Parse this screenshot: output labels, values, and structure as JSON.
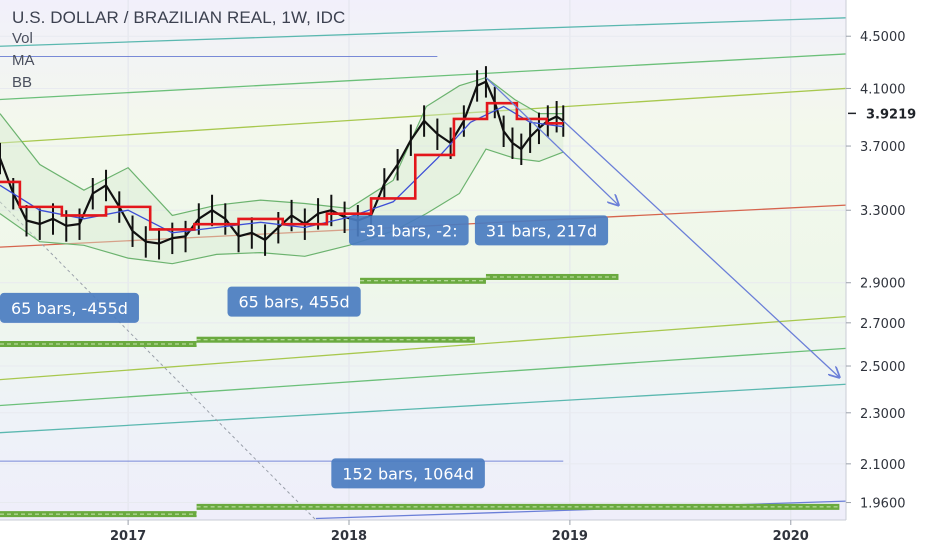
{
  "chart_data": {
    "type": "line",
    "title": "U.S. DOLLAR / BRAZILIAN REAL, 1W, IDC",
    "indicators": [
      "Vol",
      "MA",
      "BB"
    ],
    "x_ticks": [
      "2017",
      "2018",
      "2019",
      "2020"
    ],
    "y_ticks": [
      4.5,
      4.1,
      3.7,
      3.3,
      2.9,
      2.7,
      2.5,
      2.3,
      2.1,
      1.96
    ],
    "y_tick_labels": [
      "4.5000",
      "4.1000",
      "3.7000",
      "3.3000",
      "2.9000",
      "2.7000",
      "2.5000",
      "2.3000",
      "2.1000",
      "1.9600"
    ],
    "last_price": 3.9219,
    "last_price_label": "3.9219",
    "x_range": [
      2016.42,
      2020.25
    ],
    "y_scale": "log",
    "y_range": [
      1.9,
      4.8
    ],
    "series": [
      {
        "role": "price",
        "x": [
          2016.42,
          2016.48,
          2016.54,
          2016.6,
          2016.66,
          2016.72,
          2016.78,
          2016.84,
          2016.9,
          2016.96,
          2017.02,
          2017.08,
          2017.14,
          2017.2,
          2017.26,
          2017.32,
          2017.38,
          2017.44,
          2017.5,
          2017.56,
          2017.62,
          2017.68,
          2017.74,
          2017.8,
          2017.86,
          2017.92,
          2017.98,
          2018.04,
          2018.1,
          2018.16,
          2018.22,
          2018.28,
          2018.34,
          2018.4,
          2018.46,
          2018.52,
          2018.58,
          2018.62,
          2018.66,
          2018.7,
          2018.74,
          2018.78,
          2018.82,
          2018.86,
          2018.9,
          2018.94,
          2018.97
        ],
        "values": [
          3.62,
          3.4,
          3.24,
          3.22,
          3.25,
          3.21,
          3.22,
          3.4,
          3.45,
          3.32,
          3.18,
          3.12,
          3.11,
          3.14,
          3.15,
          3.25,
          3.3,
          3.25,
          3.15,
          3.17,
          3.13,
          3.2,
          3.27,
          3.22,
          3.28,
          3.3,
          3.26,
          3.24,
          3.27,
          3.46,
          3.58,
          3.74,
          3.87,
          3.78,
          3.72,
          3.87,
          4.12,
          4.15,
          4.0,
          3.8,
          3.72,
          3.68,
          3.76,
          3.82,
          3.87,
          3.9,
          3.87
        ]
      },
      {
        "role": "ma",
        "x": [
          2016.42,
          2016.6,
          2016.8,
          2017.0,
          2017.2,
          2017.4,
          2017.6,
          2017.8,
          2018.0,
          2018.2,
          2018.4,
          2018.55,
          2018.7,
          2018.82,
          2018.97
        ],
        "values": [
          3.45,
          3.3,
          3.25,
          3.3,
          3.17,
          3.2,
          3.23,
          3.2,
          3.26,
          3.35,
          3.62,
          3.86,
          3.97,
          3.86,
          3.83
        ]
      },
      {
        "role": "bb_upper",
        "x": [
          2016.42,
          2016.6,
          2016.8,
          2017.0,
          2017.2,
          2017.4,
          2017.6,
          2017.8,
          2018.0,
          2018.2,
          2018.35,
          2018.5,
          2018.62,
          2018.75,
          2018.86,
          2018.97
        ],
        "values": [
          3.92,
          3.58,
          3.42,
          3.56,
          3.27,
          3.33,
          3.36,
          3.34,
          3.31,
          3.48,
          3.97,
          4.12,
          4.18,
          4.02,
          3.92,
          3.92
        ]
      },
      {
        "role": "bb_lower",
        "x": [
          2016.42,
          2016.6,
          2016.8,
          2017.0,
          2017.2,
          2017.4,
          2017.6,
          2017.8,
          2018.0,
          2018.2,
          2018.35,
          2018.5,
          2018.62,
          2018.75,
          2018.86,
          2018.97
        ],
        "values": [
          3.28,
          3.12,
          3.1,
          3.03,
          3.0,
          3.05,
          3.06,
          3.04,
          3.1,
          3.18,
          3.28,
          3.4,
          3.68,
          3.62,
          3.6,
          3.66
        ]
      }
    ],
    "channel_lines": [
      {
        "x": [
          2016.42,
          2020.25
        ],
        "values": [
          4.42,
          4.65
        ],
        "color": "#5bb8b0"
      },
      {
        "x": [
          2016.42,
          2020.25
        ],
        "values": [
          4.02,
          4.36
        ],
        "color": "#6cc07a"
      },
      {
        "x": [
          2016.42,
          2020.25
        ],
        "values": [
          3.72,
          4.1
        ],
        "color": "#a8c84e"
      },
      {
        "x": [
          2016.42,
          2020.25
        ],
        "values": [
          3.09,
          3.33
        ],
        "color": "#d6654e"
      },
      {
        "x": [
          2016.42,
          2020.25
        ],
        "values": [
          2.44,
          2.73
        ],
        "color": "#a8c84e"
      },
      {
        "x": [
          2016.42,
          2020.25
        ],
        "values": [
          2.33,
          2.58
        ],
        "color": "#6cc07a"
      },
      {
        "x": [
          2016.42,
          2020.25
        ],
        "values": [
          2.22,
          2.42
        ],
        "color": "#5bb8b0"
      }
    ],
    "horizontal_lines": [
      {
        "x": [
          2016.42,
          2018.4
        ],
        "value": 4.34,
        "color": "#5b6fd0"
      },
      {
        "x": [
          2016.42,
          2018.97
        ],
        "value": 2.11,
        "color": "#5b6fd0"
      }
    ],
    "projection_arrows": [
      {
        "x": [
          2018.62,
          2019.22
        ],
        "values": [
          4.18,
          3.33
        ]
      },
      {
        "x": [
          2018.97,
          2020.22
        ],
        "values": [
          3.87,
          2.45
        ]
      }
    ],
    "annotations": [
      {
        "label": "-31 bars, -2:",
        "x": 2018.0,
        "y": 3.1
      },
      {
        "label": "31 bars, 217d",
        "x": 2018.57,
        "y": 3.1
      },
      {
        "label": "65 bars, -455d",
        "x": 2016.42,
        "y": 2.7
      },
      {
        "label": "65 bars, 455d",
        "x": 2017.45,
        "y": 2.73
      },
      {
        "label": "152 bars, 1064d",
        "x": 2017.92,
        "y": 2.01
      }
    ],
    "range_bars": [
      {
        "x": [
          2018.05,
          2018.62
        ],
        "value": 2.91
      },
      {
        "x": [
          2018.62,
          2019.22
        ],
        "value": 2.93
      },
      {
        "x": [
          2016.42,
          2017.31
        ],
        "value": 2.6
      },
      {
        "x": [
          2017.31,
          2018.57
        ],
        "value": 2.62
      },
      {
        "x": [
          2016.42,
          2017.31
        ],
        "value": 1.92
      },
      {
        "x": [
          2017.31,
          2020.22
        ],
        "value": 1.945
      }
    ]
  }
}
